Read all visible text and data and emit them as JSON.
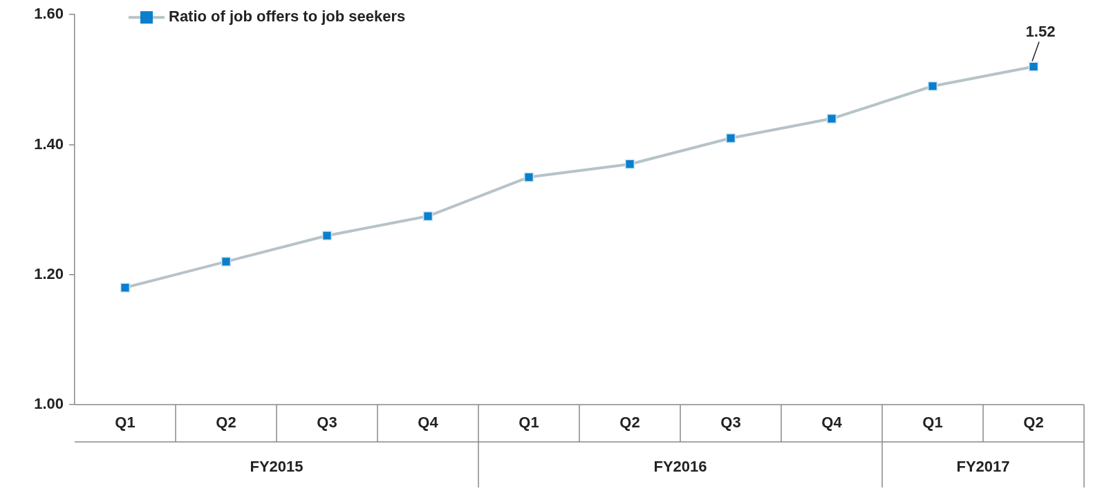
{
  "chart_data": {
    "type": "line",
    "categories": [
      "Q1",
      "Q2",
      "Q3",
      "Q4",
      "Q1",
      "Q2",
      "Q3",
      "Q4",
      "Q1",
      "Q2"
    ],
    "series": [
      {
        "name": "Ratio of job offers to job seekers",
        "color": "#0a7fcc",
        "values": [
          1.18,
          1.22,
          1.26,
          1.29,
          1.35,
          1.37,
          1.41,
          1.44,
          1.49,
          1.52
        ],
        "value_labels": [
          null,
          null,
          null,
          null,
          null,
          null,
          null,
          null,
          null,
          "1.52"
        ]
      }
    ],
    "ylim": [
      1.0,
      1.6
    ],
    "yticks": [
      {
        "value": 1.0,
        "label": "1.00"
      },
      {
        "value": 1.2,
        "label": "1.20"
      },
      {
        "value": 1.4,
        "label": "1.40"
      },
      {
        "value": 1.6,
        "label": "1.60"
      }
    ],
    "annotations": [
      "FY2015",
      "FY2016",
      "FY2017"
    ],
    "legend": "top left",
    "marker": "square",
    "line_style": "solid"
  }
}
